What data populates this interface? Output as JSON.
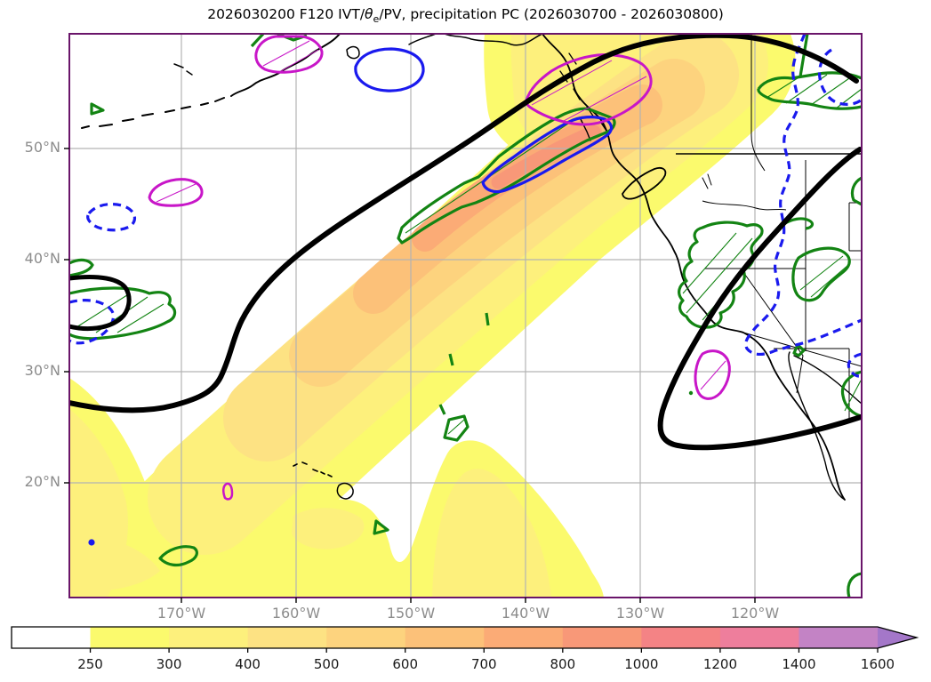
{
  "title": {
    "prefix": "2026030200 F120 IVT/",
    "theta": "θ",
    "theta_sub": "e",
    "suffix": "/PV, precipitation PC (2026030700 - 2026030800)"
  },
  "chart_data": {
    "type": "heatmap",
    "subtype": "geographic filled-contour forecast map (North Pacific / western North America)",
    "title": "2026030200 F120 IVT/θe/PV, precipitation PC (2026030700 - 2026030800)",
    "x_axis": {
      "labels": [
        "170°W",
        "160°W",
        "150°W",
        "140°W",
        "130°W",
        "120°W"
      ]
    },
    "y_axis": {
      "labels": [
        "50°N",
        "40°N",
        "30°N",
        "20°N"
      ]
    },
    "colorbar": {
      "tick_labels": [
        "250",
        "300",
        "400",
        "500",
        "600",
        "700",
        "800",
        "1000",
        "1200",
        "1400",
        "1600"
      ],
      "levels": [
        250,
        300,
        400,
        500,
        600,
        700,
        800,
        1000,
        1200,
        1400,
        1600
      ],
      "segment_colors": [
        "#ffffff",
        "#fbfa6d",
        "#fdf07c",
        "#fde283",
        "#fdd37e",
        "#fcc179",
        "#fbab76",
        "#f89878",
        "#f48385",
        "#ee7e9c",
        "#c383c5"
      ],
      "arrow_color": "#a477c9"
    },
    "layers": [
      {
        "name": "IVT",
        "style": "filled contours, yellow-to-purple shading"
      },
      {
        "name": "theta-e / PV",
        "style": "thick solid black contours"
      },
      {
        "name": "precipitation PC (green)",
        "style": "solid green contours with diagonal hatching"
      },
      {
        "name": "precipitation PC (blue)",
        "style": "blue solid and dashed contours"
      },
      {
        "name": "precipitation PC (magenta)",
        "style": "magenta contours with diagonal hatching"
      }
    ],
    "line_colors": {
      "green": "#138413",
      "blue": "#1a1aee",
      "magenta": "#c816c8",
      "black": "#000000"
    },
    "features": [
      "Aleutian Islands",
      "Alaska Peninsula",
      "British Columbia coast",
      "Vancouver Island",
      "US West Coast with state borders",
      "Baja California",
      "Hawaiian Islands"
    ]
  }
}
